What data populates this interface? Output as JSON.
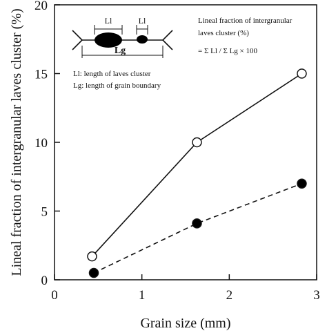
{
  "chart_data": {
    "type": "line",
    "title": "",
    "xlabel": "Grain size (mm)",
    "ylabel": "Lineal fraction of intergranular laves cluster (%)",
    "xlim": [
      0,
      3
    ],
    "ylim": [
      0,
      20
    ],
    "x_ticks": [
      "0",
      "1",
      "2",
      "3"
    ],
    "y_ticks": [
      "0",
      "5",
      "10",
      "15",
      "20"
    ],
    "grid": false,
    "legend": "none",
    "series": [
      {
        "marker": "open-circle",
        "line_style": "solid",
        "x": [
          0.43,
          1.63,
          2.83
        ],
        "y": [
          1.7,
          10.0,
          15.0
        ]
      },
      {
        "marker": "filled-circle",
        "line_style": "dashed",
        "x": [
          0.45,
          1.63,
          2.83
        ],
        "y": [
          0.5,
          4.1,
          7.0
        ]
      }
    ],
    "annotations": {
      "diagram_label_li_1": "Ll",
      "diagram_label_li_2": "Ll",
      "diagram_label_lg": "Lg",
      "legend_line_1": "Ll: length of laves cluster",
      "legend_line_2": "Lg: length of grain boundary",
      "formula_line_1": "Lineal fraction of intergranular",
      "formula_line_2": "laves cluster (%)",
      "formula_line_3": "= Σ Ll / Σ Lg × 100"
    }
  }
}
